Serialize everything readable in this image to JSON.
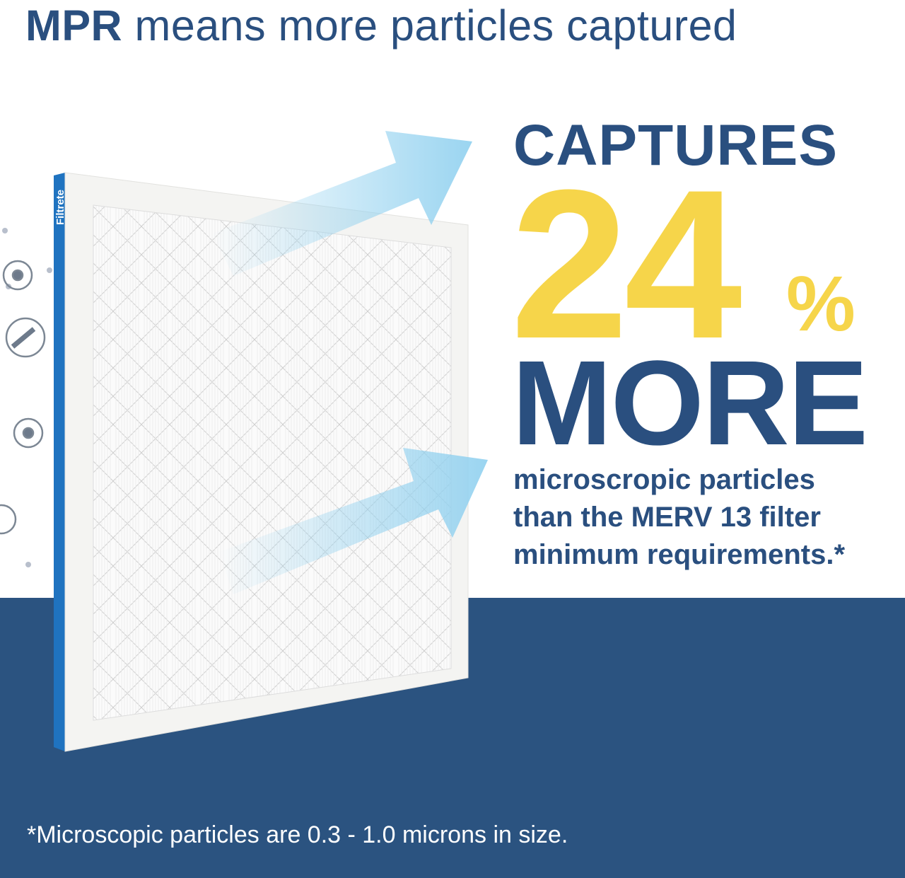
{
  "header": {
    "title_bold": "MPR",
    "title_rest": "means more particles captured"
  },
  "product": {
    "brand": "Filtrete"
  },
  "claim": {
    "line1": "CAPTURES",
    "value": "24",
    "unit": "%",
    "line3": "MORE",
    "description": [
      "microscropic particles",
      "than the MERV 13 filter",
      "minimum requirements.*"
    ]
  },
  "footnote": "*Microscopic particles are 0.3 - 1.0 microns in size.",
  "colors": {
    "navy": "#2a4f7f",
    "band": "#2b5380",
    "yellow": "#f6d54a",
    "filter_edge": "#1f73c0",
    "arrow": "#8fd0ef"
  },
  "icons": [
    "particle-icon",
    "dust-brush-icon",
    "particle-icon",
    "pet-hair-icon"
  ]
}
